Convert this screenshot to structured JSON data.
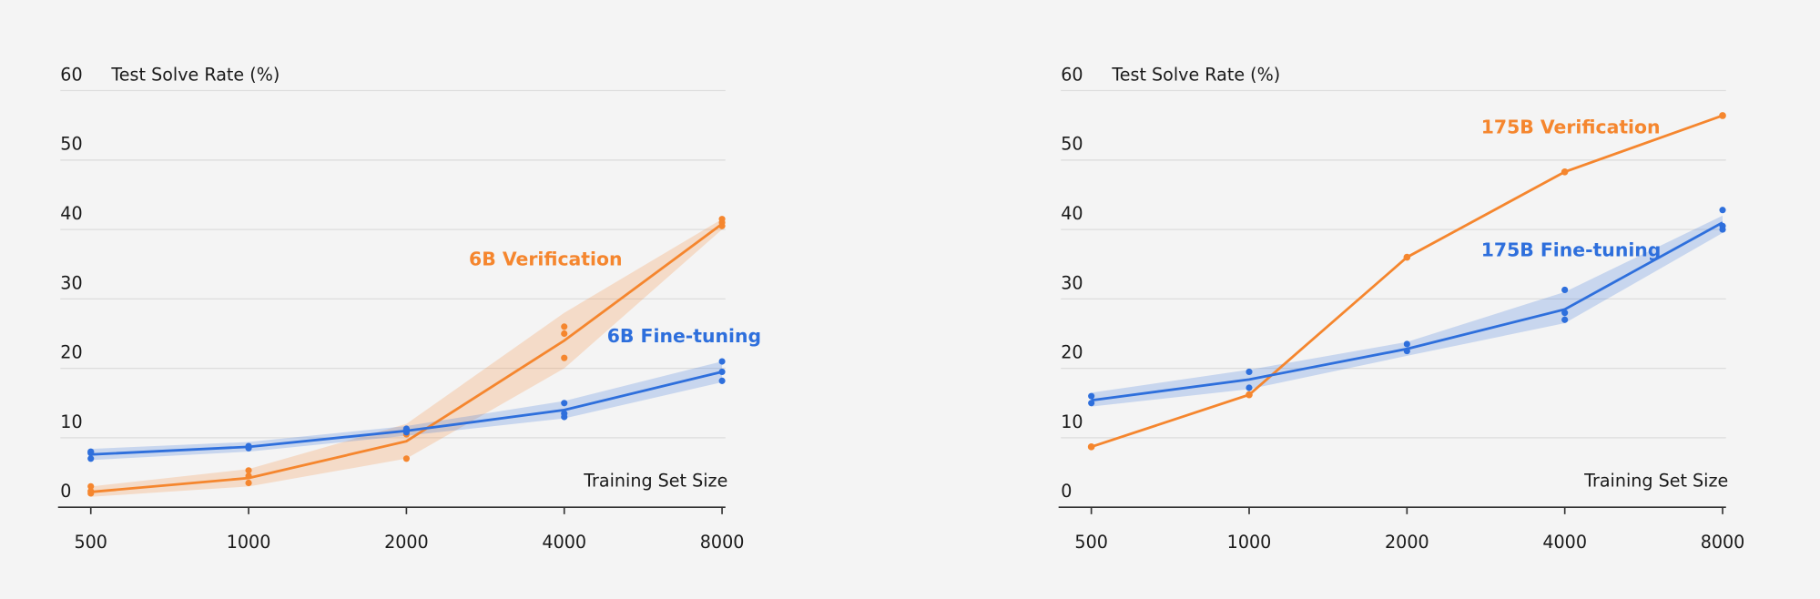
{
  "chart_data": [
    {
      "type": "line",
      "xscale": "log",
      "xlim": [
        433,
        8120
      ],
      "xticks": [
        500,
        1000,
        2000,
        4000,
        8000
      ],
      "ylim": [
        0,
        60
      ],
      "yticks": [
        0,
        10,
        20,
        30,
        40,
        50,
        60
      ],
      "grid": true,
      "ylabel": "Test Solve Rate (%)",
      "xlabel": "Training Set Size",
      "x": [
        500,
        1000,
        2000,
        4000,
        8000
      ],
      "series": [
        {
          "name": "6B Verification",
          "color": "#f5862e",
          "values": [
            2.2,
            4.2,
            9.5,
            24,
            40.8
          ],
          "band_lower": [
            1.5,
            3,
            7,
            20,
            40
          ],
          "band_upper": [
            3,
            5.5,
            12,
            28,
            41.5
          ],
          "runs": [
            [
              2,
              2.3,
              3
            ],
            [
              3.5,
              4.5,
              5.3
            ],
            [
              7,
              10.5,
              11
            ],
            [
              21.5,
              25,
              26
            ],
            [
              40.5,
              41,
              41.5
            ]
          ]
        },
        {
          "name": "6B Fine-tuning",
          "color": "#2e6fdc",
          "values": [
            7.6,
            8.7,
            11,
            14,
            19.5
          ],
          "band_lower": [
            6.8,
            8,
            10.3,
            12.8,
            18
          ],
          "band_upper": [
            8.4,
            9.4,
            11.7,
            15.3,
            21
          ],
          "runs": [
            [
              7,
              7.8,
              8
            ],
            [
              8.5,
              8.8,
              8.7
            ],
            [
              10.8,
              11.2,
              11.3
            ],
            [
              13,
              13.5,
              15
            ],
            [
              18.2,
              19.5,
              21
            ]
          ]
        }
      ]
    },
    {
      "type": "line",
      "xscale": "log",
      "xlim": [
        433,
        8120
      ],
      "xticks": [
        500,
        1000,
        2000,
        4000,
        8000
      ],
      "ylim": [
        0,
        60
      ],
      "yticks": [
        0,
        10,
        20,
        30,
        40,
        50,
        60
      ],
      "grid": true,
      "ylabel": "Test Solve Rate (%)",
      "xlabel": "Training Set Size",
      "x": [
        500,
        1000,
        2000,
        4000,
        8000
      ],
      "series": [
        {
          "name": "175B Verification",
          "color": "#f5862e",
          "values": [
            8.7,
            16.2,
            36,
            48.3,
            56.4
          ]
        },
        {
          "name": "175B Fine-tuning",
          "color": "#2e6fdc",
          "values": [
            15.4,
            18.4,
            22.8,
            28.5,
            41
          ],
          "band_lower": [
            14.5,
            17,
            21.8,
            26.5,
            39.5
          ],
          "band_upper": [
            16.5,
            19.8,
            23.8,
            31,
            42
          ],
          "runs": [
            [
              15,
              16
            ],
            [
              17.2,
              19.5
            ],
            [
              22.5,
              23.5
            ],
            [
              27,
              28,
              31.3
            ],
            [
              40,
              40.5,
              42.8
            ]
          ]
        }
      ]
    }
  ]
}
